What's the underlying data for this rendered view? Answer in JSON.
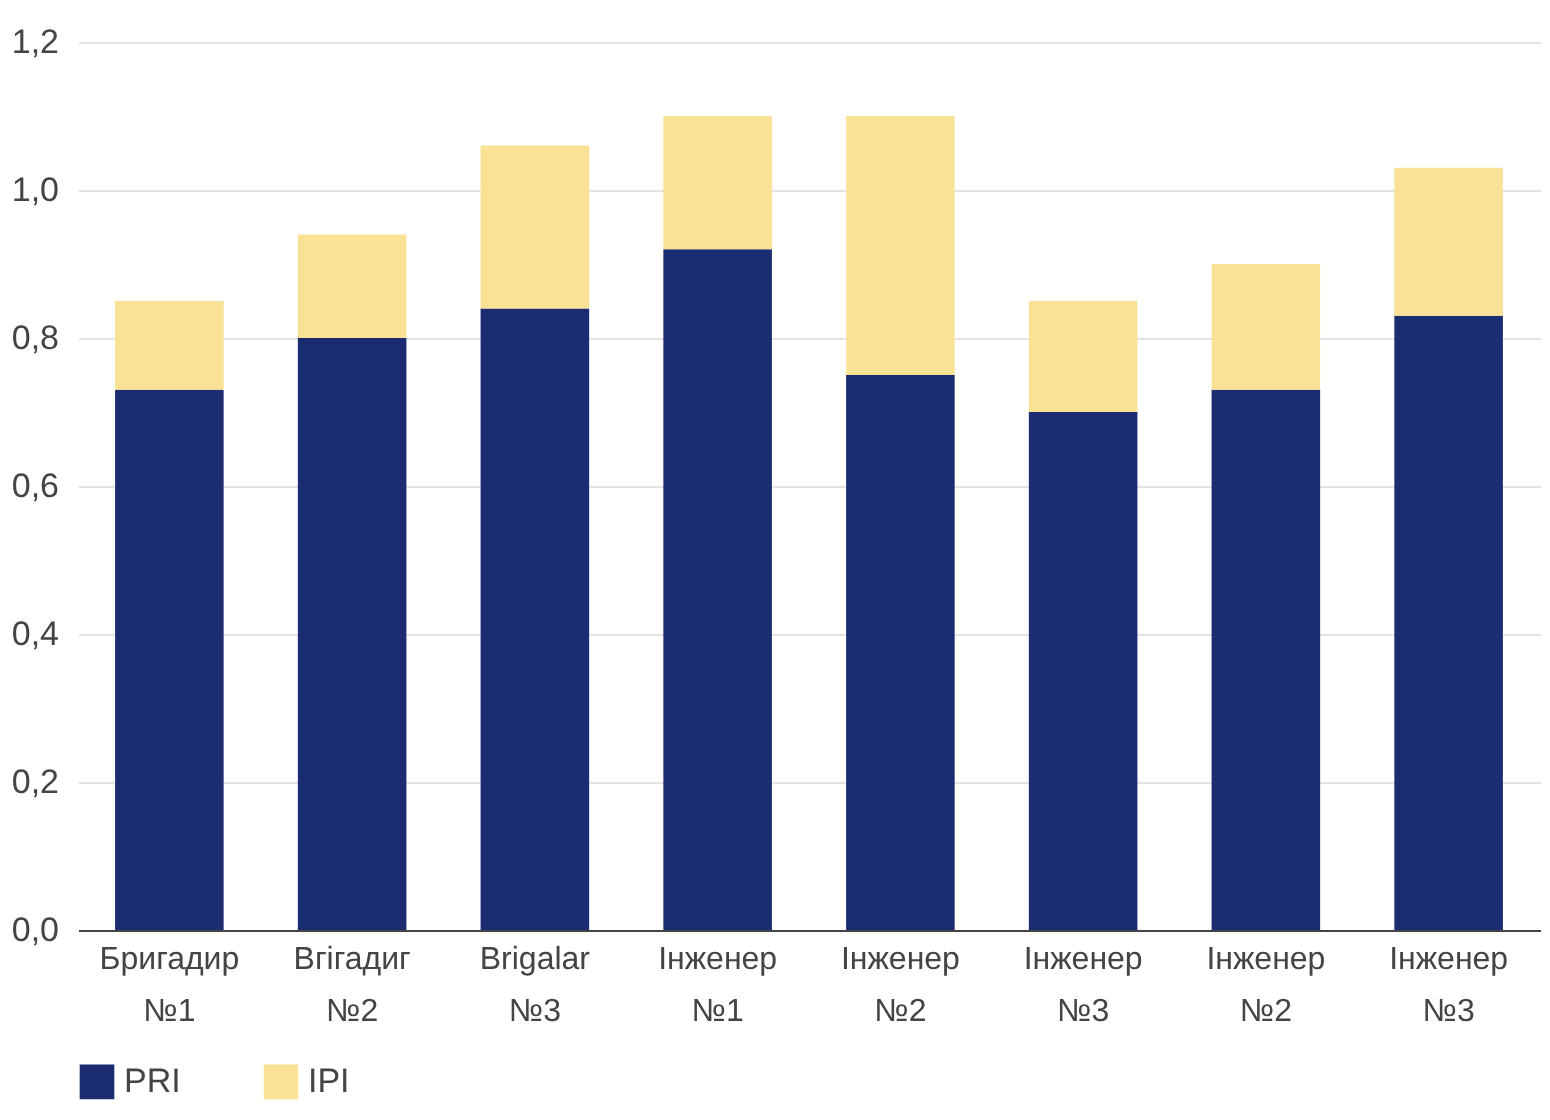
{
  "chart_data": {
    "type": "bar",
    "stacked": true,
    "categories": [
      "Бригадир №1",
      "Вгігадиг №2",
      "Brigalar №3",
      "Інженер №1",
      "Інженер №2",
      "Інженер №3",
      "Інженер №2",
      "Інженер №3"
    ],
    "series": [
      {
        "name": "PRI",
        "color": "#1b2c70",
        "values": [
          0.73,
          0.8,
          0.84,
          0.92,
          0.75,
          0.7,
          0.73,
          0.83
        ]
      },
      {
        "name": "IPI",
        "color": "#f9e196",
        "values": [
          0.12,
          0.14,
          0.22,
          0.18,
          0.35,
          0.15,
          0.17,
          0.2
        ]
      }
    ],
    "ylim": [
      0,
      1.2
    ],
    "yticks": [
      {
        "value": 0,
        "label": "0,0"
      },
      {
        "value": 0.2,
        "label": "0,2"
      },
      {
        "value": 0.4,
        "label": "0,4"
      },
      {
        "value": 0.6,
        "label": "0,6"
      },
      {
        "value": 0.8,
        "label": "0,8"
      },
      {
        "value": 1.0,
        "label": "1,0"
      },
      {
        "value": 1.2,
        "label": "1,2"
      }
    ],
    "grid": "y",
    "legend": "bottom"
  }
}
